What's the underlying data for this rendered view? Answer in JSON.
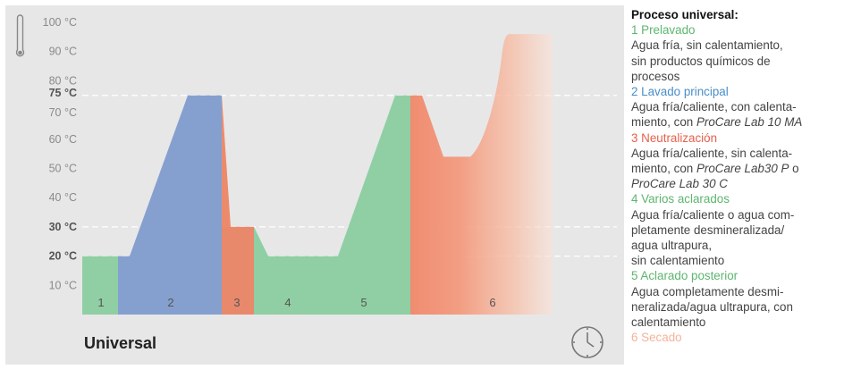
{
  "diagram": {
    "title": "Universal",
    "y_ticks": [
      {
        "value": 100,
        "label": "100 °C",
        "bold": false
      },
      {
        "value": 90,
        "label": "90 °C",
        "bold": false
      },
      {
        "value": 80,
        "label": "80 °C",
        "bold": false
      },
      {
        "value": 75,
        "label": "75 °C",
        "bold": true
      },
      {
        "value": 70,
        "label": "70 °C",
        "bold": false
      },
      {
        "value": 60,
        "label": "60 °C",
        "bold": false
      },
      {
        "value": 50,
        "label": "50 °C",
        "bold": false
      },
      {
        "value": 40,
        "label": "40 °C",
        "bold": false
      },
      {
        "value": 30,
        "label": "30 °C",
        "bold": true
      },
      {
        "value": 20,
        "label": "20 °C",
        "bold": true
      },
      {
        "value": 10,
        "label": "10 °C",
        "bold": false
      }
    ],
    "dashed_levels": [
      75,
      30,
      20
    ],
    "phases": [
      {
        "number": "1",
        "color": "#8fcfa3"
      },
      {
        "number": "2",
        "color": "#85a0cf"
      },
      {
        "number": "3",
        "color": "#ec8b6c"
      },
      {
        "number": "4",
        "color": "#8fcfa3"
      },
      {
        "number": "5",
        "color": "#8fcfa3"
      },
      {
        "number": "6",
        "color": "#f09077"
      }
    ]
  },
  "legend": {
    "title": "Proceso universal:",
    "items": [
      {
        "heading": "1 Prelavado",
        "color": "#5db56e",
        "lines": [
          [
            "Agua fría, sin calentamiento,"
          ],
          [
            "sin productos químicos de"
          ],
          [
            "procesos"
          ]
        ]
      },
      {
        "heading": "2 Lavado principal",
        "color": "#4a8ec6",
        "lines": [
          [
            "Agua fría/caliente, con calenta-"
          ],
          [
            "miento, con ",
            {
              "i": "ProCare Lab 10 MA"
            }
          ]
        ]
      },
      {
        "heading": "3 Neutralización",
        "color": "#e85f4a",
        "lines": [
          [
            "Agua fría/caliente, sin calenta-"
          ],
          [
            "miento, con ",
            {
              "i": "ProCare Lab30 P"
            },
            " o"
          ],
          [
            {
              "i": "ProCare Lab 30 C"
            }
          ]
        ]
      },
      {
        "heading": "4 Varios aclarados",
        "color": "#5db56e",
        "lines": [
          [
            "Agua fría/caliente o agua com-"
          ],
          [
            "pletamente desmineralizada/"
          ],
          [
            "agua ultrapura,"
          ],
          [
            "sin calentamiento"
          ]
        ]
      },
      {
        "heading": "5 Aclarado posterior",
        "color": "#5db56e",
        "lines": [
          [
            "Agua completamente desmi-"
          ],
          [
            "neralizada/agua ultrapura, con"
          ],
          [
            "calentamiento"
          ]
        ]
      },
      {
        "heading": "6 Secado",
        "color": "#f4b39a",
        "lines": []
      }
    ]
  }
}
